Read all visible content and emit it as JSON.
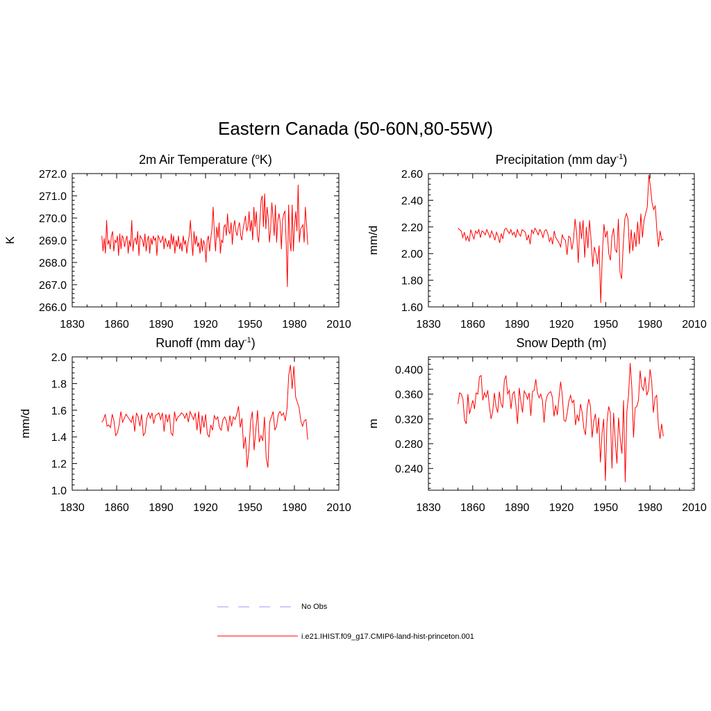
{
  "figure": {
    "title": "Eastern Canada (50-60N,80-55W)"
  },
  "legend": {
    "items": [
      {
        "label": "No Obs",
        "color": "#9999ff",
        "style": "dashed"
      },
      {
        "label": "i.e21.IHIST.f09_g17.CMIP6-land-hist-princeton.001",
        "color": "#ff0000",
        "style": "solid"
      }
    ]
  },
  "colors": {
    "series": "#ff0000",
    "axes": "#000000",
    "obs": "#9999ff"
  },
  "chart_data": [
    {
      "type": "line",
      "title": "2m Air Temperature (",
      "title_sup": "o",
      "title_tail": "K)",
      "ylabel": "K",
      "xlim": [
        1830,
        2010
      ],
      "ylim": [
        266.0,
        272.0
      ],
      "xticks": [
        "1830",
        "1860",
        "1890",
        "1920",
        "1950",
        "1980",
        "2010"
      ],
      "yticks": [
        "266.0",
        "267.0",
        "268.0",
        "269.0",
        "270.0",
        "271.0",
        "272.0"
      ],
      "series": [
        {
          "x_start": 1850,
          "values": [
            269.2,
            268.5,
            269.1,
            268.4,
            269.9,
            268.8,
            269.0,
            268.6,
            269.2,
            269.4,
            268.5,
            269.0,
            268.9,
            269.2,
            268.3,
            269.3,
            268.6,
            269.2,
            269.1,
            268.7,
            269.0,
            269.2,
            268.4,
            269.0,
            268.7,
            269.9,
            268.5,
            269.0,
            269.1,
            268.8,
            269.4,
            268.3,
            269.2,
            269.1,
            269.0,
            268.7,
            269.3,
            268.5,
            269.0,
            269.2,
            268.4,
            269.1,
            268.8,
            269.2,
            269.0,
            269.1,
            268.3,
            269.2,
            269.1,
            268.9,
            269.0,
            269.2,
            268.6,
            269.1,
            268.9,
            268.7,
            269.0,
            268.6,
            269.3,
            268.8,
            269.2,
            268.4,
            269.0,
            268.7,
            269.2,
            268.6,
            268.9,
            268.5,
            269.2,
            268.8,
            269.0,
            268.4,
            268.9,
            269.2,
            269.9,
            269.0,
            268.3,
            269.4,
            268.8,
            269.2,
            268.7,
            268.9,
            268.4,
            269.1,
            268.5,
            269.0,
            268.8,
            268.0,
            269.0,
            269.2,
            268.5,
            269.1,
            269.5,
            270.5,
            269.3,
            268.5,
            269.6,
            269.1,
            269.8,
            268.4,
            269.0,
            268.9,
            269.6,
            269.7,
            269.2,
            270.2,
            269.4,
            269.3,
            269.8,
            268.8,
            269.6,
            269.9,
            269.4,
            269.2,
            269.6,
            269.8,
            269.2,
            269.0,
            269.5,
            269.8,
            270.1,
            269.4,
            269.6,
            270.3,
            269.4,
            269.9,
            269.0,
            270.5,
            269.6,
            270.3,
            269.2,
            268.9,
            269.8,
            270.8,
            271.0,
            269.6,
            271.1,
            269.5,
            270.5,
            270.0,
            268.9,
            269.5,
            270.7,
            270.0,
            269.2,
            270.6,
            268.9,
            269.9,
            270.2,
            269.8,
            268.6,
            269.9,
            270.2,
            270.3,
            268.9,
            266.9,
            270.6,
            269.0,
            268.5,
            270.6,
            268.5,
            269.7,
            270.3,
            269.4,
            271.5,
            268.9,
            269.5,
            269.6,
            269.7,
            268.9,
            270.5,
            269.7,
            268.8
          ],
          "x_end": 1989
        }
      ]
    },
    {
      "type": "line",
      "title": "Precipitation (mm day",
      "title_sup": "-1",
      "title_tail": ")",
      "ylabel": "mm/d",
      "xlim": [
        1830,
        2010
      ],
      "ylim": [
        1.6,
        2.6
      ],
      "xticks": [
        "1830",
        "1860",
        "1890",
        "1920",
        "1950",
        "1980",
        "2010"
      ],
      "yticks": [
        "1.60",
        "1.80",
        "2.00",
        "2.20",
        "2.40",
        "2.60"
      ],
      "series": [
        {
          "x_start": 1850,
          "values": [
            2.19,
            2.18,
            2.17,
            2.12,
            2.16,
            2.1,
            2.13,
            2.09,
            2.18,
            2.14,
            2.11,
            2.17,
            2.15,
            2.18,
            2.12,
            2.17,
            2.16,
            2.14,
            2.18,
            2.15,
            2.12,
            2.17,
            2.14,
            2.1,
            2.16,
            2.13,
            2.08,
            2.15,
            2.11,
            2.18,
            2.19,
            2.17,
            2.15,
            2.18,
            2.14,
            2.16,
            2.12,
            2.18,
            2.15,
            2.13,
            2.18,
            2.17,
            2.16,
            2.1,
            2.14,
            2.07,
            2.18,
            2.15,
            2.19,
            2.17,
            2.14,
            2.18,
            2.16,
            2.12,
            2.17,
            2.18,
            2.15,
            2.09,
            2.12,
            2.07,
            2.17,
            2.12,
            2.1,
            2.08,
            2.05,
            2.14,
            2.11,
            2.1,
            1.99,
            2.13,
            2.12,
            2.03,
            2.1,
            2.26,
            2.15,
            1.93,
            2.24,
            2.11,
            2.25,
            1.97,
            2.2,
            2.04,
            2.25,
            2.1,
            1.9,
            2.05,
            2.0,
            1.92,
            2.06,
            1.63,
            2.0,
            2.22,
            2.12,
            2.17,
            2.0,
            1.95,
            2.13,
            2.19,
            2.03,
            2.01,
            2.26,
            1.86,
            1.81,
            2.06,
            2.26,
            2.3,
            2.26,
            2.0,
            2.18,
            2.02,
            2.16,
            2.05,
            2.24,
            2.07,
            2.3,
            2.12,
            2.25,
            2.3,
            2.35,
            2.59,
            2.5,
            2.38,
            2.33,
            2.36,
            2.17,
            2.05,
            2.17,
            2.1,
            2.11
          ],
          "x_end": 1989
        }
      ]
    },
    {
      "type": "line",
      "title": "Runoff (mm day",
      "title_sup": "-1",
      "title_tail": ")",
      "ylabel": "mm/d",
      "xlim": [
        1830,
        2010
      ],
      "ylim": [
        1.0,
        2.0
      ],
      "xticks": [
        "1830",
        "1860",
        "1890",
        "1920",
        "1950",
        "1980",
        "2010"
      ],
      "yticks": [
        "1.0",
        "1.2",
        "1.4",
        "1.6",
        "1.8",
        "2.0"
      ],
      "series": [
        {
          "x_start": 1850,
          "values": [
            1.51,
            1.53,
            1.57,
            1.48,
            1.49,
            1.47,
            1.57,
            1.52,
            1.41,
            1.43,
            1.49,
            1.59,
            1.51,
            1.54,
            1.57,
            1.55,
            1.53,
            1.51,
            1.56,
            1.44,
            1.58,
            1.55,
            1.48,
            1.57,
            1.41,
            1.43,
            1.54,
            1.58,
            1.54,
            1.58,
            1.5,
            1.56,
            1.57,
            1.58,
            1.53,
            1.58,
            1.44,
            1.57,
            1.51,
            1.57,
            1.43,
            1.41,
            1.59,
            1.52,
            1.55,
            1.56,
            1.58,
            1.57,
            1.54,
            1.58,
            1.51,
            1.59,
            1.56,
            1.53,
            1.58,
            1.45,
            1.59,
            1.42,
            1.56,
            1.47,
            1.57,
            1.42,
            1.4,
            1.49,
            1.45,
            1.56,
            1.53,
            1.55,
            1.47,
            1.45,
            1.53,
            1.55,
            1.52,
            1.44,
            1.56,
            1.48,
            1.55,
            1.53,
            1.57,
            1.63,
            1.47,
            1.54,
            1.31,
            1.4,
            1.17,
            1.3,
            1.52,
            1.59,
            1.3,
            1.45,
            1.6,
            1.36,
            1.41,
            1.37,
            1.55,
            1.24,
            1.17,
            1.51,
            1.55,
            1.59,
            1.45,
            1.48,
            1.57,
            1.59,
            1.56,
            1.58,
            1.52,
            1.61,
            1.86,
            1.94,
            1.76,
            1.93,
            1.7,
            1.66,
            1.62,
            1.52,
            1.48,
            1.52,
            1.53,
            1.38
          ],
          "x_end": 1989
        }
      ]
    },
    {
      "type": "line",
      "title": "Snow Depth (m)",
      "title_sup": "",
      "title_tail": "",
      "ylabel": "m",
      "xlim": [
        1830,
        2010
      ],
      "ylim": [
        0.205,
        0.42
      ],
      "xticks": [
        "1830",
        "1860",
        "1890",
        "1920",
        "1950",
        "1980",
        "2010"
      ],
      "yticks": [
        "0.240",
        "0.280",
        "0.320",
        "0.360",
        "0.400"
      ],
      "series": [
        {
          "x_start": 1850,
          "values": [
            0.344,
            0.362,
            0.36,
            0.352,
            0.318,
            0.312,
            0.36,
            0.328,
            0.34,
            0.35,
            0.336,
            0.362,
            0.36,
            0.388,
            0.39,
            0.35,
            0.362,
            0.355,
            0.366,
            0.34,
            0.32,
            0.332,
            0.362,
            0.34,
            0.33,
            0.364,
            0.345,
            0.338,
            0.382,
            0.39,
            0.36,
            0.366,
            0.336,
            0.36,
            0.364,
            0.342,
            0.312,
            0.37,
            0.348,
            0.33,
            0.365,
            0.36,
            0.352,
            0.362,
            0.325,
            0.364,
            0.366,
            0.384,
            0.362,
            0.354,
            0.36,
            0.35,
            0.314,
            0.348,
            0.358,
            0.362,
            0.364,
            0.355,
            0.324,
            0.342,
            0.326,
            0.354,
            0.38,
            0.358,
            0.318,
            0.316,
            0.33,
            0.349,
            0.358,
            0.346,
            0.35,
            0.31,
            0.327,
            0.316,
            0.344,
            0.33,
            0.305,
            0.294,
            0.336,
            0.352,
            0.34,
            0.29,
            0.316,
            0.328,
            0.296,
            0.322,
            0.25,
            0.296,
            0.32,
            0.22,
            0.315,
            0.34,
            0.33,
            0.24,
            0.33,
            0.284,
            0.248,
            0.322,
            0.288,
            0.264,
            0.35,
            0.218,
            0.332,
            0.358,
            0.41,
            0.37,
            0.29,
            0.338,
            0.34,
            0.35,
            0.398,
            0.372,
            0.366,
            0.388,
            0.358,
            0.366,
            0.4,
            0.38,
            0.33,
            0.354,
            0.358,
            0.31,
            0.288,
            0.312,
            0.292
          ],
          "x_end": 1989
        }
      ]
    }
  ]
}
